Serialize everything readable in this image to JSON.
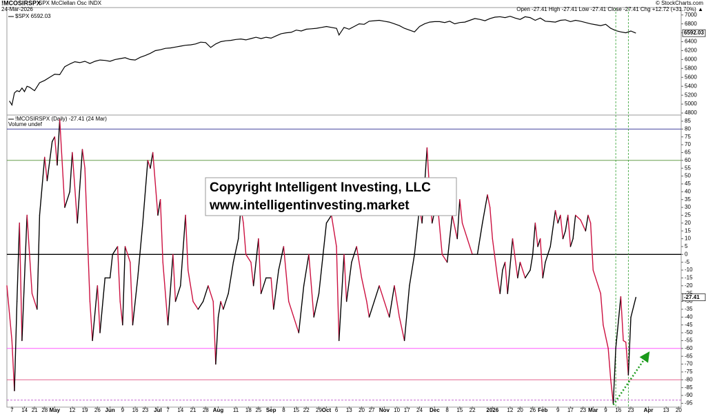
{
  "header": {
    "symbol": "!MCOSIRSPX",
    "name": "SPX McClellan Osc INDX",
    "date": "24-Mar-2026",
    "source": "© StockCharts.com",
    "quote": "Open -27.41  High -27.41  Low -27.41  Close -27.41  Chg +12.72 (+31.70%) ▲"
  },
  "watermark": [
    "Copyright Intelligent Investing, LLC",
    "www.intelligentinvesting.market"
  ],
  "chart_data": [
    {
      "type": "line",
      "legend": "$SPX 6592.03",
      "last_label": "6592.03",
      "color": "#000000",
      "xlim": [
        0,
        268
      ],
      "ylim": [
        4770,
        7150
      ],
      "yticks": [
        4800,
        5000,
        5200,
        5400,
        5600,
        5800,
        6000,
        6200,
        6400,
        6600,
        6800,
        7000
      ],
      "x": [
        1,
        2,
        3,
        4,
        5,
        6,
        7,
        8,
        9,
        11,
        13,
        15,
        17,
        19,
        21,
        23,
        25,
        27,
        29,
        31,
        33,
        35,
        37,
        39,
        41,
        43,
        45,
        47,
        49,
        51,
        53,
        55,
        57,
        59,
        61,
        63,
        65,
        67,
        69,
        71,
        73,
        75,
        77,
        79,
        81,
        83,
        85,
        87,
        89,
        91,
        93,
        95,
        97,
        99,
        101,
        103,
        105,
        107,
        109,
        111,
        113,
        115,
        117,
        119,
        121,
        123,
        125,
        127,
        129,
        131,
        132,
        134,
        136,
        138,
        140,
        142,
        144,
        146,
        148,
        150,
        152,
        154,
        156,
        158,
        160,
        162,
        164,
        166,
        168,
        170,
        172,
        174,
        176,
        178,
        180,
        182,
        184,
        186,
        188,
        190,
        192,
        194,
        196,
        198,
        200,
        202,
        204,
        206,
        208,
        210,
        212,
        214,
        216,
        218,
        220,
        222,
        224,
        226,
        228,
        230,
        232,
        234,
        236,
        238,
        240,
        242,
        244,
        246,
        248,
        250
      ],
      "values": [
        5070,
        4980,
        5250,
        5300,
        5280,
        5360,
        5280,
        5400,
        5380,
        5300,
        5480,
        5530,
        5600,
        5670,
        5660,
        5840,
        5900,
        5950,
        5930,
        5960,
        5910,
        5960,
        5990,
        5980,
        5960,
        6000,
        6020,
        6040,
        6000,
        5990,
        6050,
        6090,
        6140,
        6200,
        6220,
        6250,
        6260,
        6280,
        6300,
        6320,
        6330,
        6350,
        6390,
        6380,
        6270,
        6350,
        6400,
        6420,
        6430,
        6450,
        6460,
        6440,
        6470,
        6500,
        6470,
        6500,
        6480,
        6530,
        6580,
        6600,
        6610,
        6660,
        6640,
        6680,
        6690,
        6700,
        6720,
        6740,
        6720,
        6700,
        6550,
        6720,
        6680,
        6740,
        6800,
        6790,
        6860,
        6870,
        6880,
        6860,
        6840,
        6800,
        6760,
        6700,
        6660,
        6620,
        6740,
        6800,
        6840,
        6850,
        6850,
        6830,
        6860,
        6800,
        6830,
        6840,
        6880,
        6920,
        6900,
        6870,
        6920,
        6950,
        6960,
        6940,
        6970,
        6930,
        6900,
        6960,
        6940,
        6880,
        6930,
        6860,
        6850,
        6840,
        6880,
        6890,
        6850,
        6880,
        6860,
        6830,
        6800,
        6780,
        6760,
        6790,
        6700,
        6650,
        6620,
        6600,
        6640,
        6592.03
      ]
    },
    {
      "type": "line",
      "legend": "!MCOSIRSPX (Daily) -27.41 (24 Mar)",
      "sublegend": "Volume undef",
      "last_label": "-27.41",
      "up_color": "#000000",
      "down_color": "#cc1040",
      "xlim": [
        0,
        268
      ],
      "ylim": [
        -97,
        88.5
      ],
      "yticks": [
        -95,
        -90,
        -85,
        -80,
        -75,
        -70,
        -65,
        -60,
        -55,
        -50,
        -45,
        -40,
        -35,
        -30,
        -25,
        -20,
        -15,
        -10,
        -5,
        0,
        5,
        10,
        15,
        20,
        25,
        30,
        35,
        40,
        45,
        50,
        55,
        60,
        65,
        70,
        75,
        80,
        85
      ],
      "xticks": [
        {
          "value": 2,
          "label": "7"
        },
        {
          "value": 7,
          "label": "14"
        },
        {
          "value": 11,
          "label": "21"
        },
        {
          "value": 15,
          "label": "28"
        },
        {
          "value": 19,
          "label": "May"
        },
        {
          "value": 26,
          "label": "12"
        },
        {
          "value": 31,
          "label": "19"
        },
        {
          "value": 36,
          "label": "26"
        },
        {
          "value": 41,
          "label": "Jun"
        },
        {
          "value": 46,
          "label": "9"
        },
        {
          "value": 51,
          "label": "16"
        },
        {
          "value": 55,
          "label": "23"
        },
        {
          "value": 60,
          "label": "Jul"
        },
        {
          "value": 64,
          "label": "7"
        },
        {
          "value": 69,
          "label": "14"
        },
        {
          "value": 74,
          "label": "21"
        },
        {
          "value": 79,
          "label": "28"
        },
        {
          "value": 84,
          "label": "Aug"
        },
        {
          "value": 91,
          "label": "11"
        },
        {
          "value": 96,
          "label": "18"
        },
        {
          "value": 100,
          "label": "25"
        },
        {
          "value": 105,
          "label": "Sep"
        },
        {
          "value": 110,
          "label": "8"
        },
        {
          "value": 115,
          "label": "15"
        },
        {
          "value": 119,
          "label": "22"
        },
        {
          "value": 124,
          "label": "29"
        },
        {
          "value": 127,
          "label": "Oct"
        },
        {
          "value": 131,
          "label": "6"
        },
        {
          "value": 136,
          "label": "13"
        },
        {
          "value": 141,
          "label": "20"
        },
        {
          "value": 145,
          "label": "27"
        },
        {
          "value": 150,
          "label": "Nov"
        },
        {
          "value": 155,
          "label": "10"
        },
        {
          "value": 159,
          "label": "17"
        },
        {
          "value": 164,
          "label": "24"
        },
        {
          "value": 170,
          "label": "Dec"
        },
        {
          "value": 175,
          "label": "8"
        },
        {
          "value": 180,
          "label": "15"
        },
        {
          "value": 185,
          "label": "22"
        },
        {
          "value": 193,
          "label": "2026"
        },
        {
          "value": 200,
          "label": "12"
        },
        {
          "value": 204,
          "label": "20"
        },
        {
          "value": 209,
          "label": "26"
        },
        {
          "value": 213,
          "label": "Feb"
        },
        {
          "value": 219,
          "label": "9"
        },
        {
          "value": 224,
          "label": "17"
        },
        {
          "value": 229,
          "label": "23"
        },
        {
          "value": 233,
          "label": "Mar"
        },
        {
          "value": 238,
          "label": "9"
        },
        {
          "value": 243,
          "label": "16"
        },
        {
          "value": 248,
          "label": "23"
        },
        {
          "value": 255,
          "label": "Apr"
        },
        {
          "value": 262,
          "label": "13"
        },
        {
          "value": 267,
          "label": "20"
        }
      ],
      "hlines": [
        {
          "value": 80,
          "color": "#2a2a90"
        },
        {
          "value": 60,
          "color": "#4f8f30"
        },
        {
          "value": 0,
          "color": "#000000"
        },
        {
          "value": -60,
          "color": "#ff40ff"
        },
        {
          "value": -80,
          "color": "#e05080"
        },
        {
          "value": -93,
          "color": "#b030c0",
          "dashed": true
        }
      ],
      "vlines": [
        242,
        247
      ],
      "vline_color": "#2e9e2e",
      "arrow": {
        "from": [
          241,
          -96
        ],
        "to": [
          255,
          -63
        ],
        "color": "#1a9a1a"
      },
      "x": [
        0,
        2,
        3,
        4,
        5,
        6,
        8,
        10,
        12,
        13,
        15,
        16,
        18,
        19,
        20,
        21,
        23,
        25,
        26,
        28,
        30,
        31,
        33,
        34,
        36,
        37,
        39,
        41,
        42,
        44,
        45,
        46,
        47,
        49,
        50,
        52,
        54,
        56,
        57,
        58,
        60,
        61,
        62,
        64,
        66,
        67,
        69,
        71,
        72,
        74,
        76,
        78,
        80,
        82,
        83,
        84,
        85,
        86,
        88,
        90,
        92,
        93,
        94,
        95,
        97,
        98,
        100,
        101,
        103,
        105,
        106,
        108,
        110,
        112,
        114,
        116,
        118,
        120,
        122,
        124,
        125,
        127,
        129,
        131,
        132,
        134,
        135,
        137,
        139,
        141,
        143,
        144,
        146,
        148,
        150,
        152,
        153,
        154,
        156,
        158,
        160,
        162,
        163,
        164,
        165,
        167,
        168,
        169,
        171,
        173,
        175,
        177,
        179,
        180,
        181,
        183,
        185,
        187,
        189,
        191,
        192,
        193,
        195,
        196,
        197,
        198,
        199,
        201,
        203,
        204,
        206,
        208,
        209,
        210,
        211,
        212,
        213,
        214,
        215,
        216,
        218,
        219,
        220,
        221,
        222,
        223,
        224,
        225,
        226,
        228,
        230,
        231,
        232,
        233,
        235,
        236,
        237,
        239,
        240,
        241,
        242,
        244,
        245,
        246,
        247,
        248,
        250
      ],
      "values": [
        -20,
        -55,
        -87,
        -30,
        20,
        -55,
        25,
        -25,
        -35,
        25,
        62,
        47,
        72,
        75,
        57,
        86,
        30,
        40,
        65,
        20,
        67,
        55,
        -30,
        -55,
        -20,
        -50,
        -15,
        -15,
        0,
        5,
        -30,
        -45,
        5,
        -5,
        -45,
        -15,
        20,
        60,
        55,
        65,
        25,
        35,
        -5,
        -45,
        0,
        -30,
        -20,
        25,
        -10,
        -30,
        -35,
        -30,
        -20,
        -30,
        -70,
        -40,
        -30,
        -35,
        -25,
        -5,
        10,
        30,
        20,
        0,
        -5,
        -20,
        10,
        -25,
        -15,
        -15,
        -35,
        -10,
        5,
        -30,
        -40,
        -50,
        -20,
        0,
        -40,
        -25,
        -10,
        20,
        25,
        5,
        -55,
        0,
        -30,
        -5,
        5,
        -15,
        -30,
        -40,
        -30,
        -20,
        -30,
        -40,
        -30,
        -20,
        -40,
        -55,
        -20,
        0,
        15,
        30,
        20,
        68,
        40,
        20,
        35,
        0,
        -5,
        25,
        10,
        35,
        20,
        10,
        0,
        0,
        20,
        38,
        30,
        10,
        -15,
        -25,
        -10,
        -5,
        -25,
        10,
        -15,
        -5,
        -15,
        -10,
        0,
        20,
        5,
        10,
        -15,
        -5,
        0,
        5,
        28,
        20,
        25,
        10,
        15,
        25,
        5,
        10,
        25,
        22,
        15,
        25,
        20,
        -10,
        -20,
        -25,
        -45,
        -60,
        -80,
        -95,
        -60,
        -27,
        -55,
        -56,
        -77,
        -40.13,
        -27.41
      ]
    }
  ]
}
